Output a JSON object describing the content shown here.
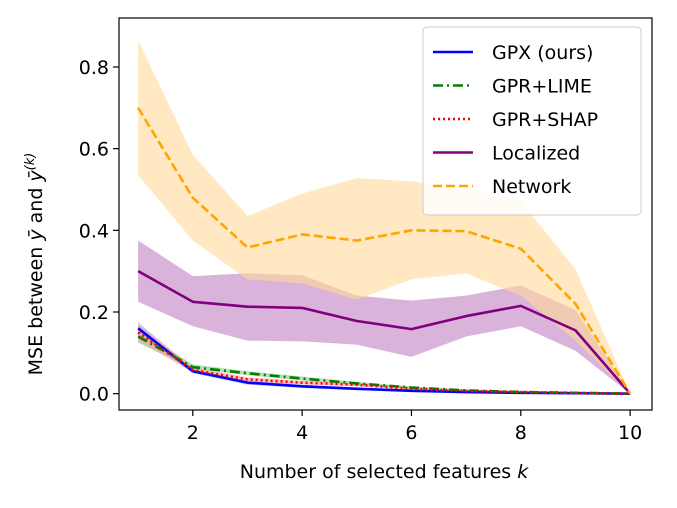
{
  "chart_data": {
    "type": "line",
    "xlabel": "Number of selected features ",
    "xlabel_var": "k",
    "ylabel": "MSE between ",
    "ylabel_y1": "ȳ",
    "ylabel_and": " and ",
    "ylabel_y2": "ȳ",
    "ylabel_sup": "(k)",
    "xlim": [
      0.65,
      10.4
    ],
    "ylim": [
      -0.04,
      0.92
    ],
    "xticks": [
      2,
      4,
      6,
      8,
      10
    ],
    "yticks": [
      "0.0",
      "0.2",
      "0.4",
      "0.6",
      "0.8"
    ],
    "ytick_values": [
      0.0,
      0.2,
      0.4,
      0.6,
      0.8
    ],
    "grid": false,
    "legend_position": "top-right",
    "x": [
      1,
      2,
      3,
      4,
      5,
      6,
      7,
      8,
      9,
      10
    ],
    "series": [
      {
        "name": "GPX (ours)",
        "color": "#0000ff",
        "dash": "solid",
        "values": [
          0.16,
          0.055,
          0.027,
          0.018,
          0.012,
          0.007,
          0.004,
          0.002,
          0.001,
          0.0
        ],
        "lower": [
          0.145,
          0.05,
          0.022,
          0.014,
          0.009,
          0.005,
          0.003,
          0.001,
          0.0,
          0.0
        ],
        "upper": [
          0.175,
          0.062,
          0.032,
          0.022,
          0.015,
          0.009,
          0.005,
          0.003,
          0.002,
          0.0
        ],
        "band_color": "#aaaaff"
      },
      {
        "name": "GPR+LIME",
        "color": "#008000",
        "dash": "dashdot",
        "values": [
          0.14,
          0.065,
          0.05,
          0.037,
          0.025,
          0.015,
          0.008,
          0.004,
          0.002,
          0.0
        ],
        "lower": [
          0.125,
          0.06,
          0.045,
          0.032,
          0.021,
          0.012,
          0.006,
          0.003,
          0.001,
          0.0
        ],
        "upper": [
          0.155,
          0.072,
          0.055,
          0.042,
          0.029,
          0.018,
          0.01,
          0.005,
          0.003,
          0.0
        ],
        "band_color": "#88cc88"
      },
      {
        "name": "GPR+SHAP",
        "color": "#ff0000",
        "dash": "dotted",
        "values": [
          0.15,
          0.058,
          0.035,
          0.027,
          0.022,
          0.012,
          0.007,
          0.004,
          0.002,
          0.0
        ],
        "lower": [
          0.13,
          0.052,
          0.03,
          0.023,
          0.018,
          0.01,
          0.005,
          0.003,
          0.001,
          0.0
        ],
        "upper": [
          0.17,
          0.064,
          0.04,
          0.031,
          0.026,
          0.014,
          0.009,
          0.005,
          0.003,
          0.0
        ],
        "band_color": "#ff9999"
      },
      {
        "name": "Localized",
        "color": "#800080",
        "dash": "solid",
        "values": [
          0.3,
          0.225,
          0.213,
          0.21,
          0.178,
          0.158,
          0.19,
          0.215,
          0.155,
          0.0
        ],
        "lower": [
          0.225,
          0.165,
          0.13,
          0.128,
          0.12,
          0.09,
          0.14,
          0.165,
          0.105,
          0.0
        ],
        "upper": [
          0.375,
          0.288,
          0.295,
          0.29,
          0.24,
          0.228,
          0.24,
          0.265,
          0.205,
          0.0
        ],
        "band_color": "#c080c0"
      },
      {
        "name": "Network",
        "color": "#ffa500",
        "dash": "dashed",
        "values": [
          0.7,
          0.48,
          0.358,
          0.39,
          0.375,
          0.4,
          0.398,
          0.355,
          0.22,
          0.0
        ],
        "lower": [
          0.535,
          0.375,
          0.28,
          0.27,
          0.23,
          0.28,
          0.295,
          0.24,
          0.13,
          0.0
        ],
        "upper": [
          0.865,
          0.585,
          0.435,
          0.49,
          0.528,
          0.52,
          0.5,
          0.47,
          0.305,
          0.0
        ],
        "band_color": "#ffd89a"
      }
    ]
  }
}
